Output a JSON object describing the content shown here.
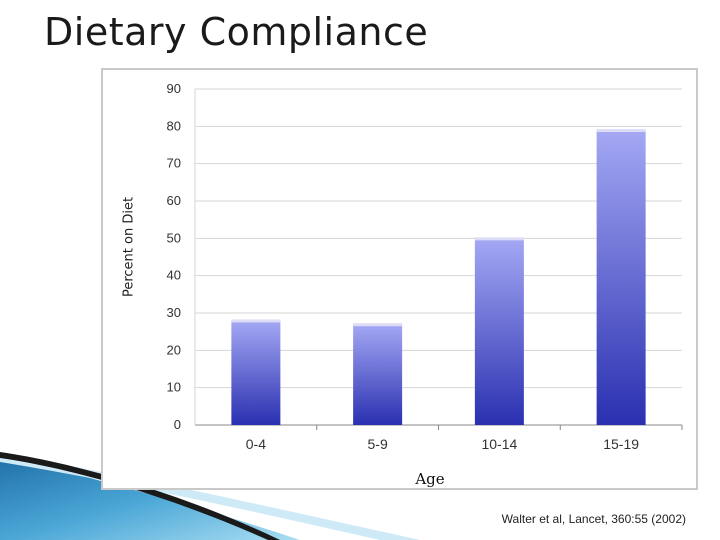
{
  "slide": {
    "title": "Dietary Compliance",
    "citation": "Walter et al, Lancet, 360:55 (2002)"
  },
  "colors": {
    "bar_top": "#a4a8f4",
    "bar_bottom": "#2a30b0",
    "bar_cap": "#dcdcf6",
    "grid": "#d6d6d6",
    "axis": "#888888",
    "frame": "#c9c9c9",
    "swoosh_blue": "#2b7fb8",
    "swoosh_light": "#8fd0ee",
    "swoosh_dark": "#1a1a1a"
  },
  "chart_data": {
    "type": "bar",
    "title": "",
    "categories": [
      "0-4",
      "5-9",
      "10-14",
      "15-19"
    ],
    "values": [
      28,
      27,
      50,
      79
    ],
    "xlabel": "Age",
    "ylabel": "Percent on Diet",
    "ylim": [
      0,
      90
    ],
    "yticks": [
      0,
      10,
      20,
      30,
      40,
      50,
      60,
      70,
      80,
      90
    ],
    "grid": true,
    "legend": "none"
  }
}
